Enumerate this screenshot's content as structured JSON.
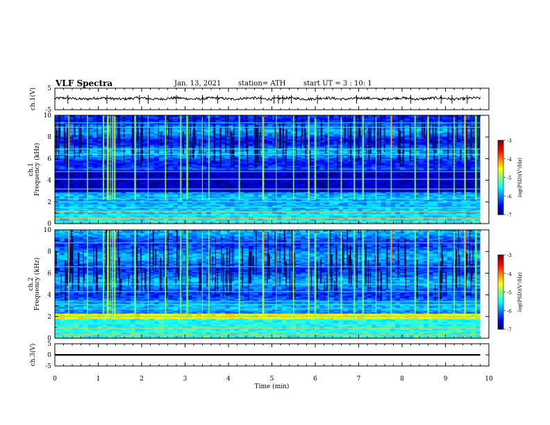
{
  "header": {
    "title": "VLF Spectra",
    "date": "Jan. 13, 2021",
    "station": "station= ATH",
    "start": "start UT =  3 : 10: 1"
  },
  "chart_data": [
    {
      "type": "line",
      "name": "ch1_waveform",
      "ylabel": "ch.1(V)",
      "ylim": [
        -5,
        5
      ],
      "yticks": [
        5,
        -5
      ],
      "xlim": [
        0,
        10
      ],
      "baseline": 0.2,
      "noise_amplitude": 0.6,
      "spike_times_min": [
        0.3,
        1.2,
        1.95,
        2.15,
        2.8,
        3.4,
        3.75,
        4.75,
        5.05,
        5.15,
        5.25,
        5.45,
        6.05,
        6.95,
        8.2,
        8.9,
        9.15,
        9.5
      ],
      "trace_end_min": 9.8
    },
    {
      "type": "heatmap",
      "name": "ch1_spectrogram",
      "ylabel": "ch.1\nFrequency (kHz)",
      "ylim": [
        0,
        10
      ],
      "yticks": [
        0,
        2,
        4,
        6,
        8,
        10
      ],
      "xlim": [
        0,
        10
      ],
      "data_end_min": 9.8,
      "colorbar": {
        "label": "log(PSD)(V²/Hz)",
        "range": [
          -7,
          -3
        ],
        "ticks": [
          -3,
          -4,
          -5,
          -6,
          -7
        ]
      },
      "dark_band_khz": [
        3.0,
        5.0
      ],
      "hum_lines_khz": [
        0.2,
        0.5,
        0.8,
        1.1,
        1.5,
        2.0,
        2.3,
        3.2,
        4.1,
        4.8,
        6.4,
        6.9,
        8.9,
        9.3
      ],
      "sferic_times_min": [
        0.32,
        0.75,
        1.12,
        1.22,
        1.28,
        1.33,
        1.38,
        1.85,
        2.15,
        2.55,
        2.9,
        3.05,
        3.4,
        3.55,
        4.25,
        4.8,
        5.1,
        5.5,
        5.85,
        6.0,
        6.3,
        6.6,
        6.9,
        7.1,
        7.4,
        7.75,
        8.3,
        8.6,
        8.85,
        9.2,
        9.45,
        9.7
      ]
    },
    {
      "type": "heatmap",
      "name": "ch2_spectrogram",
      "ylabel": "ch.2\nFrequency (kHz)",
      "ylim": [
        0,
        10
      ],
      "yticks": [
        0,
        2,
        4,
        6,
        8,
        10
      ],
      "xlim": [
        0,
        10
      ],
      "data_end_min": 9.8,
      "colorbar": {
        "label": "log(PSD)(V²/Hz)",
        "range": [
          -7,
          -3
        ],
        "ticks": [
          -3,
          -4,
          -5,
          -6,
          -7
        ]
      },
      "bright_band_khz": [
        1.8,
        2.3
      ],
      "hum_lines_khz": [
        0.3,
        0.6,
        0.9,
        1.3,
        2.0,
        2.7,
        3.1,
        3.4,
        4.3,
        5.0,
        6.6,
        8.8
      ],
      "sferic_times_min": [
        0.32,
        0.75,
        1.12,
        1.22,
        1.28,
        1.33,
        1.38,
        1.85,
        2.15,
        2.55,
        2.9,
        3.05,
        3.4,
        3.55,
        4.25,
        4.8,
        5.1,
        5.5,
        5.85,
        6.0,
        6.3,
        6.6,
        6.9,
        7.1,
        7.4,
        7.75,
        8.3,
        8.6,
        8.85,
        9.2,
        9.45,
        9.7
      ]
    },
    {
      "type": "line",
      "name": "ch3_waveform",
      "ylabel": "ch.3(V)",
      "ylim": [
        -5,
        5
      ],
      "yticks": [
        5,
        0,
        -5
      ],
      "xlim": [
        0,
        10
      ],
      "baseline": 0,
      "noise_amplitude": 0.1,
      "trace_end_min": 9.8
    }
  ],
  "xaxis": {
    "label": "Time (min)",
    "ticks": [
      0,
      1,
      2,
      3,
      4,
      5,
      6,
      7,
      8,
      9,
      10
    ]
  }
}
